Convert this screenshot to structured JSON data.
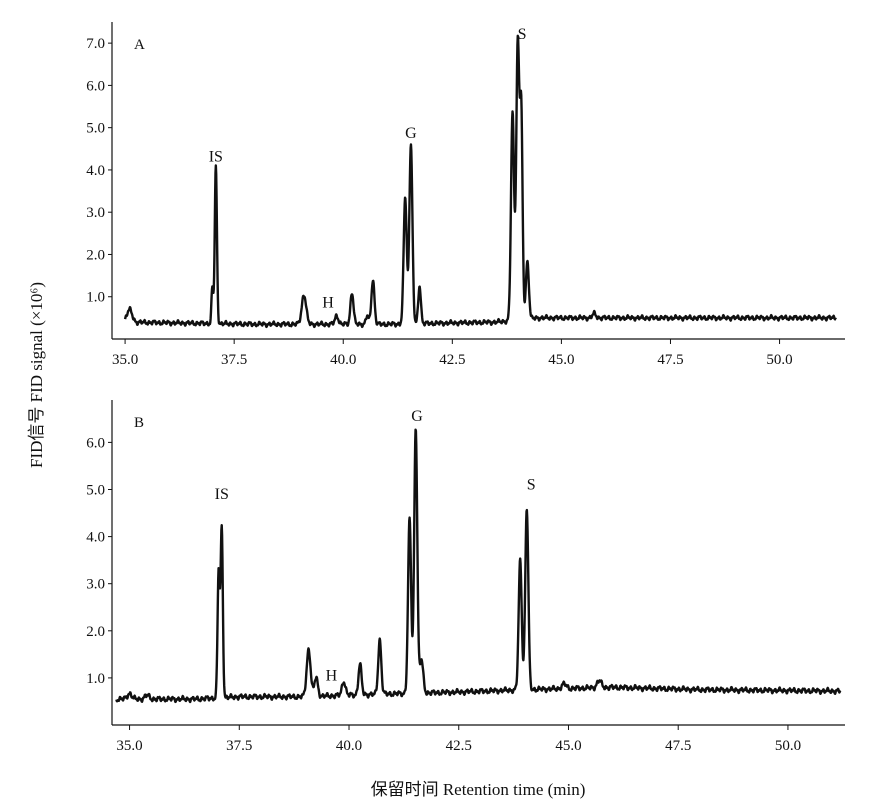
{
  "chart_data": [
    {
      "type": "line",
      "panel_label": "A",
      "xlim": [
        34.7,
        51.5
      ],
      "ylim": [
        0.0,
        7.5
      ],
      "xticks": [
        35.0,
        37.5,
        40.0,
        42.5,
        45.0,
        47.5,
        50.0
      ],
      "xtick_labels": [
        "35.0",
        "37.5",
        "40.0",
        "42.5",
        "45.0",
        "47.5",
        "50.0"
      ],
      "yticks": [
        1.0,
        2.0,
        3.0,
        4.0,
        5.0,
        6.0,
        7.0
      ],
      "ytick_labels": [
        "1.0",
        "2.0",
        "3.0",
        "4.0",
        "5.0",
        "6.0",
        "7.0"
      ],
      "baseline": [
        [
          35.0,
          0.4
        ],
        [
          38.0,
          0.35
        ],
        [
          41.0,
          0.35
        ],
        [
          43.5,
          0.4
        ],
        [
          44.5,
          0.5
        ],
        [
          47.0,
          0.5
        ],
        [
          51.3,
          0.5
        ]
      ],
      "peaks": [
        {
          "x": 35.1,
          "height": 0.3,
          "width": 0.06
        },
        {
          "x": 37.0,
          "height": 0.85,
          "width": 0.02
        },
        {
          "x": 37.08,
          "height": 3.7,
          "width": 0.025
        },
        {
          "x": 39.1,
          "height": 0.7,
          "width": 0.05
        },
        {
          "x": 39.85,
          "height": 0.2,
          "width": 0.04
        },
        {
          "x": 40.2,
          "height": 0.75,
          "width": 0.035
        },
        {
          "x": 40.55,
          "height": 0.2,
          "width": 0.03
        },
        {
          "x": 40.68,
          "height": 1.05,
          "width": 0.035
        },
        {
          "x": 41.42,
          "height": 3.0,
          "width": 0.035
        },
        {
          "x": 41.55,
          "height": 4.25,
          "width": 0.035
        },
        {
          "x": 41.75,
          "height": 0.9,
          "width": 0.03
        },
        {
          "x": 43.88,
          "height": 4.9,
          "width": 0.035
        },
        {
          "x": 44.0,
          "height": 6.55,
          "width": 0.035
        },
        {
          "x": 44.08,
          "height": 4.8,
          "width": 0.03
        },
        {
          "x": 44.22,
          "height": 1.35,
          "width": 0.035
        },
        {
          "x": 45.75,
          "height": 0.1,
          "width": 0.04
        }
      ],
      "annotations": [
        {
          "text": "IS",
          "x": 37.08,
          "y": 4.2
        },
        {
          "text": "H",
          "x": 39.65,
          "y": 0.75
        },
        {
          "text": "G",
          "x": 41.55,
          "y": 4.75
        },
        {
          "text": "S",
          "x": 44.1,
          "y": 7.1
        }
      ]
    },
    {
      "type": "line",
      "panel_label": "B",
      "xlim": [
        34.6,
        51.3
      ],
      "ylim": [
        0.0,
        6.9
      ],
      "xticks": [
        35.0,
        37.5,
        40.0,
        42.5,
        45.0,
        47.5,
        50.0
      ],
      "xtick_labels": [
        "35.0",
        "37.5",
        "40.0",
        "42.5",
        "45.0",
        "47.5",
        "50.0"
      ],
      "yticks": [
        1.0,
        2.0,
        3.0,
        4.0,
        5.0,
        6.0
      ],
      "ytick_labels": [
        "1.0",
        "2.0",
        "3.0",
        "4.0",
        "5.0",
        "6.0"
      ],
      "baseline": [
        [
          34.7,
          0.55
        ],
        [
          36.5,
          0.55
        ],
        [
          37.5,
          0.6
        ],
        [
          39.0,
          0.6
        ],
        [
          40.5,
          0.65
        ],
        [
          42.5,
          0.7
        ],
        [
          44.0,
          0.75
        ],
        [
          46.0,
          0.8
        ],
        [
          48.0,
          0.75
        ],
        [
          51.2,
          0.72
        ]
      ],
      "peaks": [
        {
          "x": 35.0,
          "height": 0.12,
          "width": 0.05
        },
        {
          "x": 35.4,
          "height": 0.08,
          "width": 0.05
        },
        {
          "x": 37.03,
          "height": 2.7,
          "width": 0.025
        },
        {
          "x": 37.1,
          "height": 3.6,
          "width": 0.025
        },
        {
          "x": 39.08,
          "height": 1.0,
          "width": 0.045
        },
        {
          "x": 39.25,
          "height": 0.4,
          "width": 0.04
        },
        {
          "x": 39.88,
          "height": 0.3,
          "width": 0.04
        },
        {
          "x": 40.25,
          "height": 0.65,
          "width": 0.035
        },
        {
          "x": 40.7,
          "height": 1.15,
          "width": 0.035
        },
        {
          "x": 41.38,
          "height": 3.7,
          "width": 0.035
        },
        {
          "x": 41.52,
          "height": 5.65,
          "width": 0.035
        },
        {
          "x": 41.65,
          "height": 0.7,
          "width": 0.04
        },
        {
          "x": 43.9,
          "height": 2.75,
          "width": 0.035
        },
        {
          "x": 44.05,
          "height": 3.85,
          "width": 0.035
        },
        {
          "x": 44.9,
          "height": 0.1,
          "width": 0.05
        },
        {
          "x": 45.7,
          "height": 0.15,
          "width": 0.05
        }
      ],
      "annotations": [
        {
          "text": "IS",
          "x": 37.1,
          "y": 4.8
        },
        {
          "text": "H",
          "x": 39.6,
          "y": 0.95
        },
        {
          "text": "G",
          "x": 41.55,
          "y": 6.45
        },
        {
          "text": "S",
          "x": 44.15,
          "y": 5.0
        }
      ]
    }
  ],
  "axes": {
    "ylabel": "FID信号 FID signal (×10⁶)",
    "xlabel": "保留时间 Retention time (min)"
  }
}
